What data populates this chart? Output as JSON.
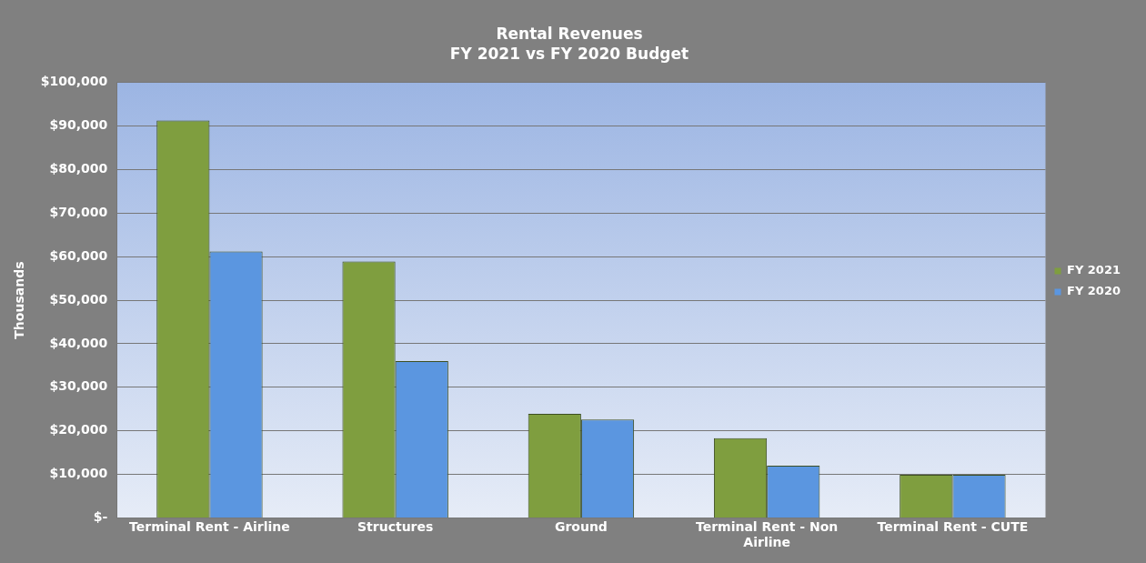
{
  "chart_data": {
    "type": "bar",
    "title": "Rental Revenues",
    "subtitle": "FY 2021 vs FY 2020 Budget",
    "ylabel": "Thousands",
    "categories": [
      "Terminal Rent - Airline",
      "Structures",
      "Ground",
      "Terminal Rent - Non Airline",
      "Terminal Rent - CUTE"
    ],
    "series": [
      {
        "name": "FY 2021",
        "color": "#7f9e3f",
        "values": [
          91300,
          58900,
          23900,
          18300,
          9900
        ]
      },
      {
        "name": "FY 2020",
        "color": "#5b96e0",
        "values": [
          61200,
          36000,
          22600,
          12000,
          9900
        ]
      }
    ],
    "ylim": [
      0,
      100000
    ],
    "yticks": [
      {
        "value": 0,
        "label": "$-"
      },
      {
        "value": 10000,
        "label": "$10,000"
      },
      {
        "value": 20000,
        "label": "$20,000"
      },
      {
        "value": 30000,
        "label": "$30,000"
      },
      {
        "value": 40000,
        "label": "$40,000"
      },
      {
        "value": 50000,
        "label": "$50,000"
      },
      {
        "value": 60000,
        "label": "$60,000"
      },
      {
        "value": 70000,
        "label": "$70,000"
      },
      {
        "value": 80000,
        "label": "$80,000"
      },
      {
        "value": 90000,
        "label": "$90,000"
      },
      {
        "value": 100000,
        "label": "$100,000"
      }
    ],
    "grid": "y",
    "legend": "right"
  }
}
